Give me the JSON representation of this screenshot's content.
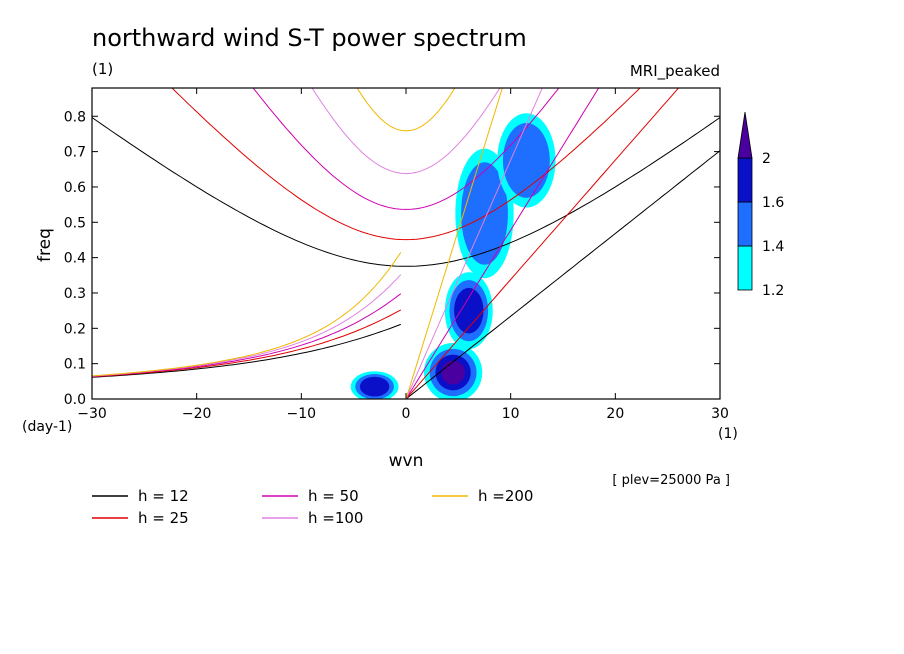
{
  "header": {
    "title": "northward wind S-T power spectrum",
    "units_left": "(1)",
    "model": "MRI_peaked"
  },
  "axes": {
    "xlabel": "wvn",
    "ylabel": "freq",
    "y_unit": "(day-1)",
    "x_unit": "(1)",
    "xticks": [
      "−30",
      "−20",
      "−10",
      "0",
      "10",
      "20",
      "30"
    ],
    "yticks": [
      "0.0",
      "0.1",
      "0.2",
      "0.3",
      "0.4",
      "0.5",
      "0.6",
      "0.7",
      "0.8"
    ]
  },
  "level_note": "[ plev=25000 Pa ]",
  "colorbar": {
    "labels": [
      "1.2",
      "1.4",
      "1.6",
      "2"
    ],
    "colors": [
      "#00ffff",
      "#1e6eff",
      "#0a10c8",
      "#4a00a0"
    ]
  },
  "legend": [
    {
      "label": "h = 12",
      "color": "#000000"
    },
    {
      "label": "h = 25",
      "color": "#e00000"
    },
    {
      "label": "h = 50",
      "color": "#d000b0"
    },
    {
      "label": "h =100",
      "color": "#e080e0"
    },
    {
      "label": "h =200",
      "color": "#f0b800"
    }
  ],
  "chart_data": {
    "type": "heatmap",
    "title": "northward wind S-T power spectrum",
    "xlabel": "wvn",
    "ylabel": "freq",
    "xlim": [
      -30,
      30
    ],
    "ylim": [
      0,
      0.88
    ],
    "contour_levels": [
      1.2,
      1.4,
      1.6,
      2.0
    ],
    "dispersion_curves": [
      {
        "name": "h = 12",
        "equivalent_depth": 12,
        "color": "#000000"
      },
      {
        "name": "h = 25",
        "equivalent_depth": 25,
        "color": "#e00000"
      },
      {
        "name": "h = 50",
        "equivalent_depth": 50,
        "color": "#d000b0"
      },
      {
        "name": "h =100",
        "equivalent_depth": 100,
        "color": "#e080e0"
      },
      {
        "name": "h =200",
        "equivalent_depth": 200,
        "color": "#f0b800"
      }
    ],
    "high_power_regions": [
      {
        "wvn_range": [
          2,
          7
        ],
        "freq_range": [
          0.0,
          0.15
        ],
        "level": 2.0
      },
      {
        "wvn_range": [
          4,
          8
        ],
        "freq_range": [
          0.15,
          0.35
        ],
        "level": 1.6
      },
      {
        "wvn_range": [
          5,
          10
        ],
        "freq_range": [
          0.35,
          0.7
        ],
        "level": 1.4
      },
      {
        "wvn_range": [
          9,
          14
        ],
        "freq_range": [
          0.55,
          0.8
        ],
        "level": 1.4
      },
      {
        "wvn_range": [
          -5,
          -1
        ],
        "freq_range": [
          0.0,
          0.07
        ],
        "level": 1.6
      }
    ]
  }
}
